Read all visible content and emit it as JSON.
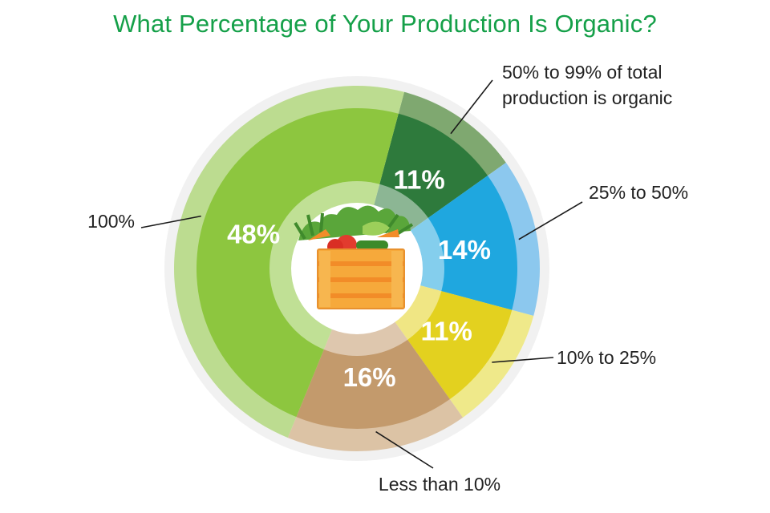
{
  "chart_data": {
    "type": "pie",
    "title": "What Percentage of Your Production Is Organic?",
    "slices": [
      {
        "label": "50% to 99% of total production is organic",
        "lines": [
          "50% to 99% of total",
          "production is organic"
        ],
        "value": 11,
        "value_label": "11%",
        "color": "#2e7a3c",
        "outer_color": "#7fa870"
      },
      {
        "label": "25% to 50%",
        "lines": [
          "25% to 50%"
        ],
        "value": 14,
        "value_label": "14%",
        "color": "#1fa7df",
        "outer_color": "#8cc8ee"
      },
      {
        "label": "10% to 25%",
        "lines": [
          "10% to 25%"
        ],
        "value": 11,
        "value_label": "11%",
        "color": "#e3d11f",
        "outer_color": "#efe98a"
      },
      {
        "label": "Less than 10%",
        "lines": [
          "Less than 10%"
        ],
        "value": 16,
        "value_label": "16%",
        "color": "#c39a6c",
        "outer_color": "#dcc3a5"
      },
      {
        "label": "100%",
        "lines": [
          "100%"
        ],
        "value": 48,
        "value_label": "48%",
        "color": "#8dc63f",
        "outer_color": "#bcdc90"
      }
    ],
    "center_icon": "vegetable-crate-icon"
  }
}
